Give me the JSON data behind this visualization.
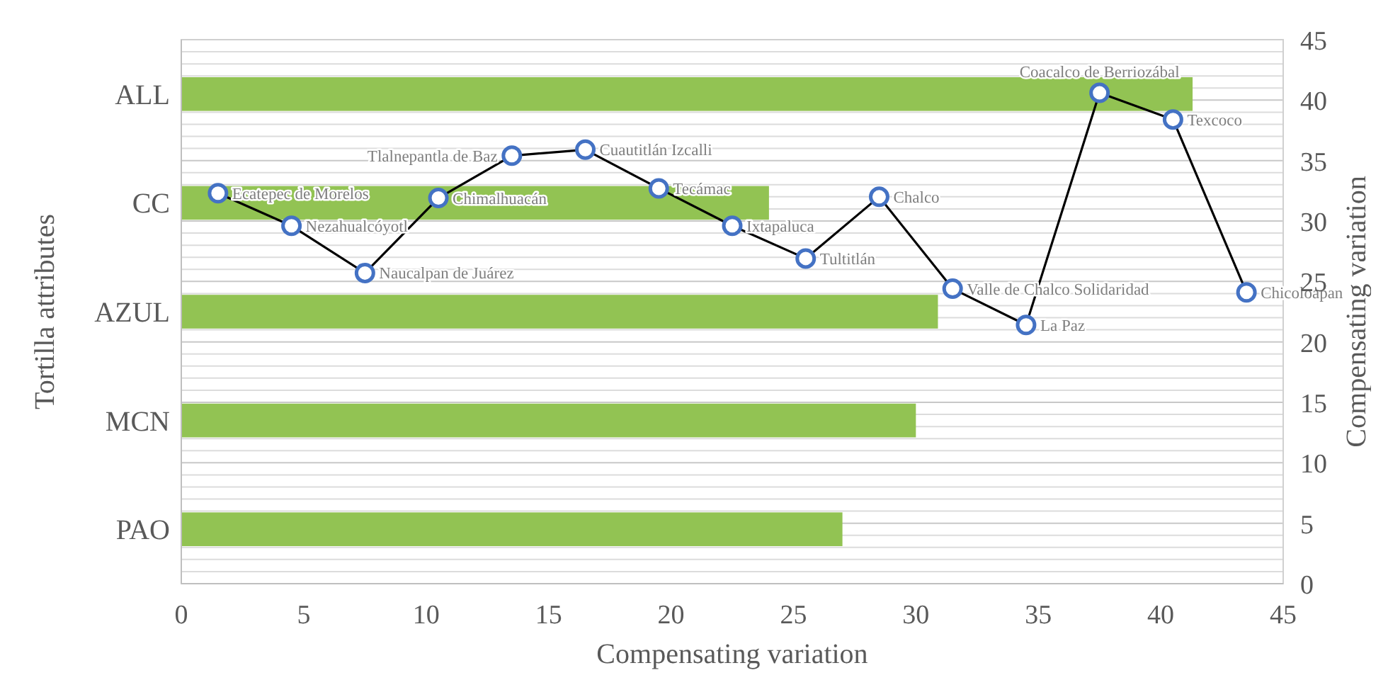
{
  "chart_data": [
    {
      "type": "bar",
      "orientation": "horizontal",
      "xlabel": "Compensating variation",
      "ylabel": "Tortilla attributes",
      "categories": [
        "ALL",
        "CC",
        "AZUL",
        "MCN",
        "PAO"
      ],
      "series": [
        {
          "color": "#92c353",
          "values": [
            41.3,
            24.0,
            30.9,
            30.0,
            27.0
          ]
        }
      ],
      "xlim": [
        0,
        45
      ],
      "xticks": [
        0,
        5,
        10,
        15,
        20,
        25,
        30,
        35,
        40,
        45
      ],
      "grid": "y"
    },
    {
      "type": "line",
      "ylabel": "Compensating variation",
      "marker": "circle",
      "tick_labels": "y",
      "series": [
        {
          "color": "#4472c4",
          "x": [
            1.5,
            4.5,
            7.5,
            10.5,
            13.5,
            16.5,
            19.5,
            22.5,
            25.5,
            28.5,
            31.5,
            34.5,
            37.5,
            40.5,
            43.5
          ],
          "values": [
            32.3,
            29.6,
            25.7,
            31.9,
            35.4,
            35.9,
            32.7,
            29.6,
            26.9,
            32.0,
            24.4,
            21.4,
            40.6,
            38.4,
            24.1
          ]
        }
      ],
      "xlim": [
        0,
        45
      ],
      "xticks": [
        0,
        5,
        10,
        15,
        20,
        25,
        30,
        35,
        40,
        45
      ],
      "ylim": [
        0,
        45
      ],
      "yticks": [
        0,
        {
          "value": 1,
          "label": null
        },
        {
          "value": 2,
          "label": null
        },
        {
          "value": 3,
          "label": null
        },
        {
          "value": 4,
          "label": null
        },
        5,
        {
          "value": 6,
          "label": null
        },
        {
          "value": 7,
          "label": null
        },
        {
          "value": 8,
          "label": null
        },
        {
          "value": 9,
          "label": null
        },
        10,
        {
          "value": 11,
          "label": null
        },
        {
          "value": 12,
          "label": null
        },
        {
          "value": 13,
          "label": null
        },
        {
          "value": 14,
          "label": null
        },
        15,
        {
          "value": 16,
          "label": null
        },
        {
          "value": 17,
          "label": null
        },
        {
          "value": 18,
          "label": null
        },
        {
          "value": 19,
          "label": null
        },
        20,
        {
          "value": 21,
          "label": null
        },
        {
          "value": 22,
          "label": null
        },
        {
          "value": 23,
          "label": null
        },
        {
          "value": 24,
          "label": null
        },
        25,
        {
          "value": 26,
          "label": null
        },
        {
          "value": 27,
          "label": null
        },
        {
          "value": 28,
          "label": null
        },
        {
          "value": 29,
          "label": null
        },
        30,
        {
          "value": 31,
          "label": null
        },
        {
          "value": 32,
          "label": null
        },
        {
          "value": 33,
          "label": null
        },
        {
          "value": 34,
          "label": null
        },
        35,
        {
          "value": 36,
          "label": null
        },
        {
          "value": 37,
          "label": null
        },
        {
          "value": 38,
          "label": null
        },
        {
          "value": 39,
          "label": null
        },
        40,
        {
          "value": 41,
          "label": null
        },
        {
          "value": 42,
          "label": null
        },
        {
          "value": 43,
          "label": null
        },
        {
          "value": 44,
          "label": null
        },
        45
      ],
      "grid": "y",
      "annotations": [
        {
          "text": "Ecatepec de Morelos",
          "x": 1.5,
          "y": 32.3
        },
        {
          "text": "Nezahualcóyotl",
          "x": 4.5,
          "y": 29.6
        },
        {
          "text": "Naucalpan de Juárez",
          "x": 7.5,
          "y": 25.7
        },
        {
          "text": "Chimalhuacán",
          "x": 10.5,
          "y": 31.9
        },
        {
          "text": "Tlalnepantla de Baz",
          "x": 13.5,
          "y": 35.4
        },
        {
          "text": "Cuautitlán Izcalli",
          "x": 16.5,
          "y": 35.9
        },
        {
          "text": "Tecámac",
          "x": 19.5,
          "y": 32.7
        },
        {
          "text": "Ixtapaluca",
          "x": 22.5,
          "y": 29.6
        },
        {
          "text": "Tultitlán",
          "x": 25.5,
          "y": 26.9
        },
        {
          "text": "Chalco",
          "x": 28.5,
          "y": 32.0
        },
        {
          "text": "Valle de Chalco Solidaridad",
          "x": 31.5,
          "y": 24.4
        },
        {
          "text": "La Paz",
          "x": 34.5,
          "y": 21.4
        },
        {
          "text": "Coacalco de Berriozábal",
          "x": 37.5,
          "y": 40.6
        },
        {
          "text": "Texcoco",
          "x": 40.5,
          "y": 38.4
        },
        {
          "text": "Chicoloapan",
          "x": 43.5,
          "y": 24.1
        }
      ]
    }
  ]
}
